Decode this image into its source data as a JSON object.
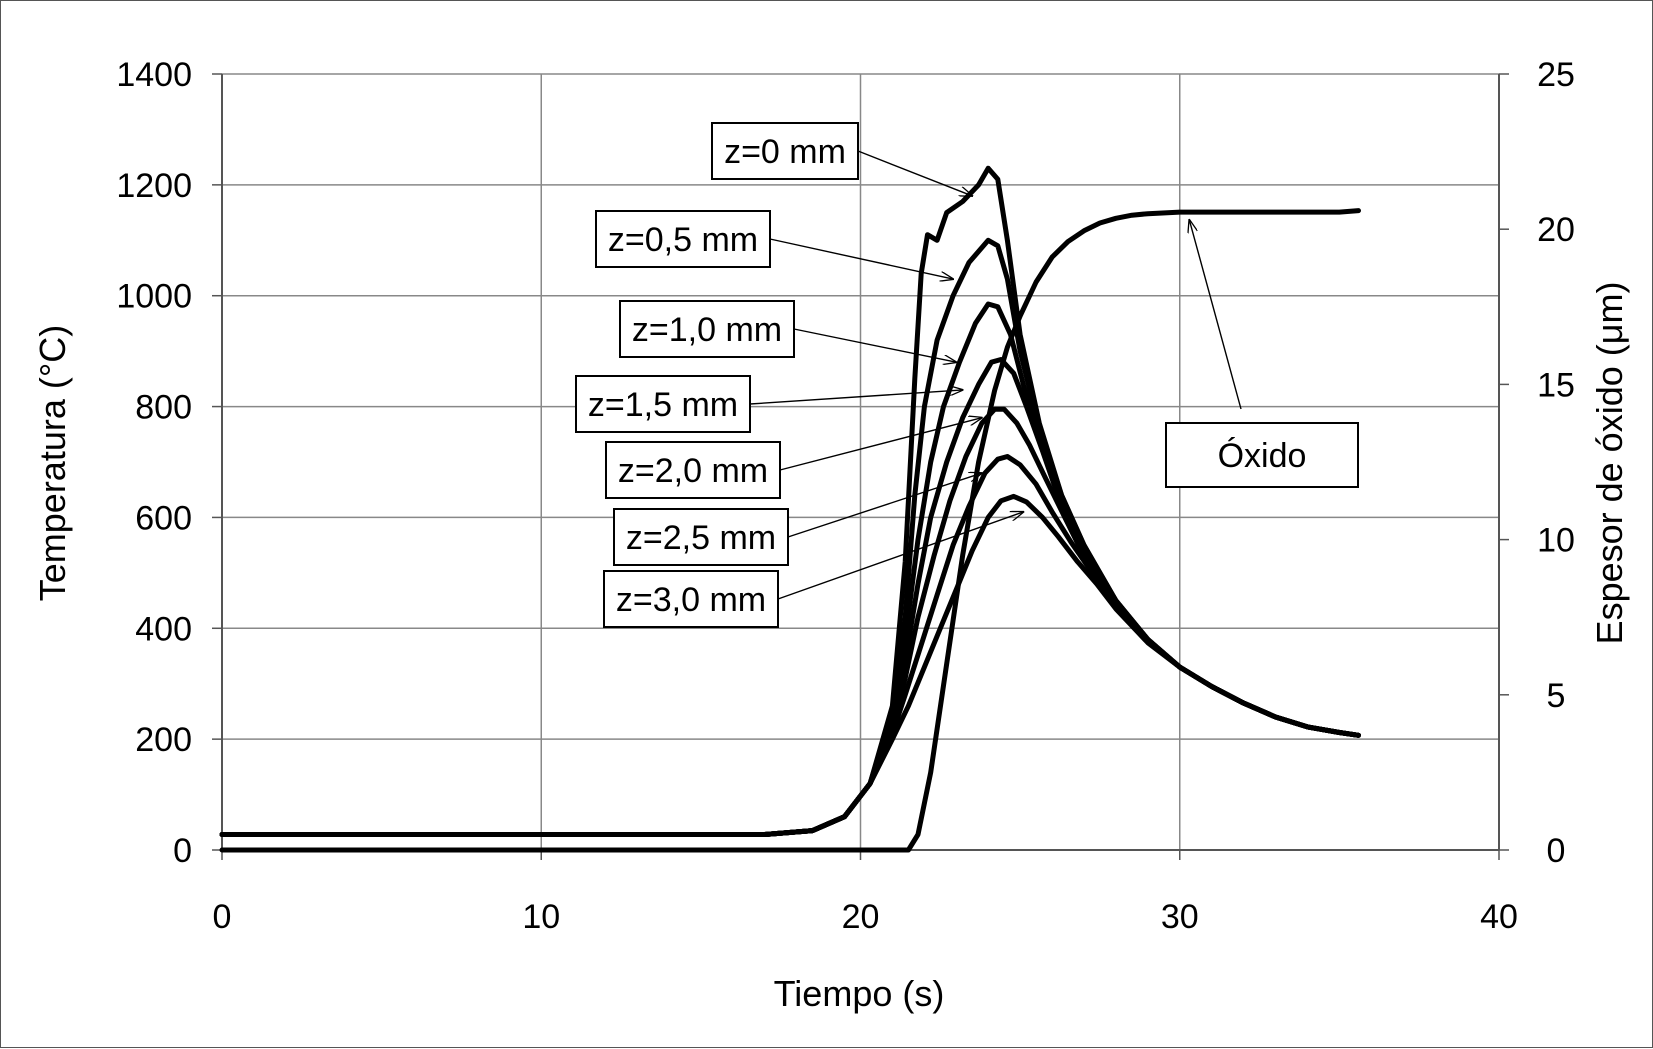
{
  "chart_data": {
    "type": "line",
    "xlabel": "Tiempo (s)",
    "ylabel": "Temperatura (°C)",
    "y2label": "Espesor de óxido (μm)",
    "xlim": [
      0,
      40
    ],
    "ylim": [
      0,
      1400
    ],
    "y2lim": [
      0,
      25
    ],
    "xticks": [
      0,
      10,
      20,
      30,
      40
    ],
    "yticks": [
      0,
      200,
      400,
      600,
      800,
      1000,
      1200,
      1400
    ],
    "y2ticks": [
      0,
      5,
      10,
      15,
      20,
      25
    ],
    "grid": true,
    "line_color": "#000000",
    "grid_color": "#888888",
    "series": [
      {
        "name": "z=0 mm",
        "axis": "left",
        "x": [
          0,
          17,
          18.5,
          19.5,
          20.3,
          21.0,
          21.4,
          21.7,
          21.9,
          22.1,
          22.4,
          22.7,
          23.2,
          23.7,
          24.0,
          24.3,
          24.6,
          25.0,
          25.6,
          26.3,
          27.0,
          28.0,
          29.0,
          30.0,
          31.0,
          32.0,
          33.0,
          34.0,
          35.0,
          35.6
        ],
        "y": [
          28,
          28,
          35,
          60,
          120,
          260,
          520,
          850,
          1040,
          1110,
          1100,
          1150,
          1170,
          1200,
          1230,
          1210,
          1100,
          930,
          770,
          640,
          550,
          450,
          380,
          330,
          295,
          265,
          240,
          222,
          212,
          207
        ]
      },
      {
        "name": "z=0,5 mm",
        "axis": "left",
        "x": [
          0,
          17,
          18.5,
          19.5,
          20.3,
          21.0,
          21.4,
          21.7,
          22.0,
          22.4,
          22.9,
          23.4,
          24.0,
          24.3,
          24.6,
          25.0,
          25.6,
          26.3,
          27.0,
          28.0,
          29.0,
          30.0,
          31.0,
          32.0,
          33.0,
          34.0,
          35.0,
          35.6
        ],
        "y": [
          28,
          28,
          35,
          60,
          120,
          250,
          420,
          640,
          800,
          920,
          1000,
          1060,
          1100,
          1090,
          1030,
          900,
          760,
          640,
          550,
          450,
          380,
          330,
          295,
          265,
          240,
          222,
          212,
          207
        ]
      },
      {
        "name": "z=1,0 mm",
        "axis": "left",
        "x": [
          0,
          17,
          18.5,
          19.5,
          20.3,
          21.0,
          21.4,
          21.8,
          22.2,
          22.6,
          23.1,
          23.6,
          24.0,
          24.3,
          24.7,
          25.1,
          25.6,
          26.3,
          27.0,
          28.0,
          29.0,
          30.0,
          31.0,
          32.0,
          33.0,
          34.0,
          35.0,
          35.6
        ],
        "y": [
          28,
          28,
          35,
          60,
          120,
          240,
          380,
          560,
          700,
          800,
          880,
          950,
          985,
          980,
          930,
          840,
          740,
          630,
          545,
          450,
          380,
          330,
          295,
          265,
          240,
          222,
          212,
          207
        ]
      },
      {
        "name": "z=1,5 mm",
        "axis": "left",
        "x": [
          0,
          17,
          18.5,
          19.5,
          20.3,
          21.0,
          21.4,
          21.8,
          22.2,
          22.7,
          23.2,
          23.7,
          24.1,
          24.4,
          24.8,
          25.2,
          25.7,
          26.3,
          27.0,
          28.0,
          29.0,
          30.0,
          31.0,
          32.0,
          33.0,
          34.0,
          35.0,
          35.6
        ],
        "y": [
          28,
          28,
          35,
          60,
          120,
          230,
          340,
          480,
          600,
          700,
          780,
          840,
          880,
          885,
          860,
          800,
          720,
          620,
          540,
          448,
          380,
          330,
          295,
          265,
          240,
          222,
          212,
          207
        ]
      },
      {
        "name": "z=2,0 mm",
        "axis": "left",
        "x": [
          0,
          17,
          18.5,
          19.5,
          20.3,
          21.0,
          21.4,
          21.8,
          22.3,
          22.8,
          23.3,
          23.8,
          24.2,
          24.5,
          24.9,
          25.3,
          25.8,
          26.4,
          27.0,
          28.0,
          29.0,
          30.0,
          31.0,
          32.0,
          33.0,
          34.0,
          35.0,
          35.6
        ],
        "y": [
          28,
          28,
          35,
          60,
          120,
          220,
          310,
          420,
          530,
          630,
          710,
          770,
          795,
          795,
          770,
          730,
          670,
          600,
          530,
          445,
          378,
          330,
          295,
          265,
          240,
          222,
          212,
          207
        ]
      },
      {
        "name": "z=2,5 mm",
        "axis": "left",
        "x": [
          0,
          17,
          18.5,
          19.5,
          20.3,
          21.0,
          21.4,
          21.9,
          22.4,
          22.9,
          23.4,
          23.9,
          24.3,
          24.6,
          25.0,
          25.5,
          26.0,
          26.6,
          27.2,
          28.0,
          29.0,
          30.0,
          31.0,
          32.0,
          33.0,
          34.0,
          35.0,
          35.6
        ],
        "y": [
          28,
          28,
          35,
          60,
          120,
          210,
          280,
          370,
          460,
          550,
          620,
          680,
          705,
          710,
          695,
          660,
          610,
          555,
          505,
          440,
          376,
          330,
          295,
          265,
          240,
          222,
          212,
          207
        ]
      },
      {
        "name": "z=3,0 mm",
        "axis": "left",
        "x": [
          0,
          17,
          18.5,
          19.5,
          20.3,
          21.0,
          21.5,
          22.0,
          22.5,
          23.0,
          23.5,
          24.0,
          24.4,
          24.8,
          25.2,
          25.7,
          26.2,
          26.8,
          27.4,
          28.0,
          29.0,
          30.0,
          31.0,
          32.0,
          33.0,
          34.0,
          35.0,
          35.6
        ],
        "y": [
          28,
          28,
          35,
          60,
          120,
          200,
          260,
          330,
          400,
          470,
          540,
          600,
          630,
          638,
          628,
          600,
          565,
          520,
          480,
          435,
          374,
          330,
          295,
          265,
          240,
          222,
          212,
          207
        ]
      },
      {
        "name": "Óxido",
        "axis": "right",
        "x": [
          0,
          21.5,
          21.8,
          22.2,
          22.7,
          23.2,
          23.7,
          24.2,
          24.6,
          25.0,
          25.5,
          26.0,
          26.5,
          27.0,
          27.5,
          28.0,
          28.5,
          29.0,
          30.0,
          31.0,
          33.0,
          35.0,
          35.6
        ],
        "y": [
          0,
          0,
          0.5,
          2.5,
          6,
          9.5,
          12.5,
          14.8,
          16.2,
          17.2,
          18.3,
          19.1,
          19.6,
          19.95,
          20.2,
          20.35,
          20.45,
          20.5,
          20.55,
          20.55,
          20.55,
          20.55,
          20.6
        ]
      }
    ],
    "annotations": [
      {
        "text": "z=0 mm",
        "series": "z=0 mm",
        "x": 23.5,
        "y": 1180
      },
      {
        "text": "z=0,5 mm",
        "series": "z=0,5 mm",
        "x": 22.9,
        "y": 1030
      },
      {
        "text": "z=1,0 mm",
        "series": "z=1,0 mm",
        "x": 23.0,
        "y": 880
      },
      {
        "text": "z=1,5 mm",
        "series": "z=1,5 mm",
        "x": 23.2,
        "y": 830
      },
      {
        "text": "z=2,0 mm",
        "series": "z=2,0 mm",
        "x": 23.8,
        "y": 780
      },
      {
        "text": "z=2,5 mm",
        "series": "z=2,5 mm",
        "x": 23.8,
        "y": 680
      },
      {
        "text": "z=3,0 mm",
        "series": "z=3,0 mm",
        "x": 25.1,
        "y": 610
      },
      {
        "text": "Óxido",
        "series": "Óxido",
        "x": 30.3,
        "y2": 20.3
      }
    ]
  }
}
